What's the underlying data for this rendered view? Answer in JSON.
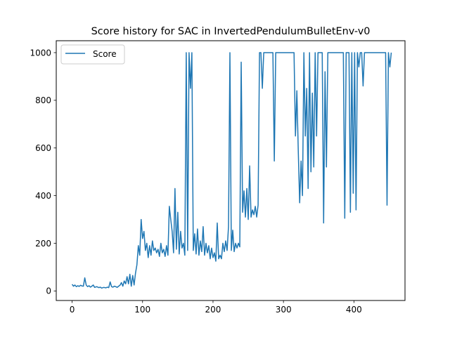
{
  "chart_data": {
    "type": "line",
    "title": "Score history for SAC in InvertedPendulumBulletEnv-v0",
    "xlabel": "",
    "ylabel": "",
    "xlim": [
      -22.5,
      472.5
    ],
    "ylim": [
      -40,
      1050
    ],
    "xticks": [
      0,
      100,
      200,
      300,
      400
    ],
    "yticks": [
      0,
      200,
      400,
      600,
      800,
      1000
    ],
    "grid": false,
    "legend_position": "upper-left",
    "series": [
      {
        "name": "Score",
        "color": "#1f77b4",
        "points": [
          [
            0,
            28
          ],
          [
            2,
            20
          ],
          [
            4,
            25
          ],
          [
            6,
            18
          ],
          [
            8,
            22
          ],
          [
            10,
            19
          ],
          [
            12,
            24
          ],
          [
            14,
            21
          ],
          [
            16,
            20
          ],
          [
            18,
            55
          ],
          [
            20,
            25
          ],
          [
            22,
            18
          ],
          [
            24,
            22
          ],
          [
            26,
            16
          ],
          [
            28,
            20
          ],
          [
            30,
            25
          ],
          [
            32,
            15
          ],
          [
            35,
            18
          ],
          [
            38,
            14
          ],
          [
            40,
            16
          ],
          [
            42,
            12
          ],
          [
            45,
            15
          ],
          [
            48,
            13
          ],
          [
            50,
            16
          ],
          [
            52,
            14
          ],
          [
            54,
            38
          ],
          [
            56,
            18
          ],
          [
            58,
            16
          ],
          [
            60,
            20
          ],
          [
            62,
            18
          ],
          [
            64,
            15
          ],
          [
            66,
            20
          ],
          [
            68,
            24
          ],
          [
            70,
            35
          ],
          [
            72,
            20
          ],
          [
            74,
            42
          ],
          [
            76,
            30
          ],
          [
            78,
            60
          ],
          [
            80,
            30
          ],
          [
            82,
            70
          ],
          [
            84,
            20
          ],
          [
            86,
            65
          ],
          [
            88,
            25
          ],
          [
            90,
            75
          ],
          [
            92,
            110
          ],
          [
            94,
            190
          ],
          [
            96,
            150
          ],
          [
            98,
            300
          ],
          [
            100,
            220
          ],
          [
            102,
            250
          ],
          [
            104,
            170
          ],
          [
            106,
            200
          ],
          [
            108,
            140
          ],
          [
            110,
            190
          ],
          [
            112,
            150
          ],
          [
            114,
            210
          ],
          [
            116,
            170
          ],
          [
            118,
            180
          ],
          [
            120,
            160
          ],
          [
            122,
            175
          ],
          [
            124,
            145
          ],
          [
            126,
            200
          ],
          [
            128,
            160
          ],
          [
            130,
            175
          ],
          [
            132,
            145
          ],
          [
            134,
            190
          ],
          [
            136,
            150
          ],
          [
            138,
            355
          ],
          [
            140,
            300
          ],
          [
            142,
            250
          ],
          [
            144,
            160
          ],
          [
            146,
            430
          ],
          [
            148,
            175
          ],
          [
            150,
            330
          ],
          [
            152,
            155
          ],
          [
            154,
            250
          ],
          [
            156,
            180
          ],
          [
            158,
            200
          ],
          [
            160,
            150
          ],
          [
            162,
            1000
          ],
          [
            164,
            170
          ],
          [
            166,
            1000
          ],
          [
            168,
            850
          ],
          [
            170,
            1000
          ],
          [
            172,
            170
          ],
          [
            174,
            240
          ],
          [
            176,
            155
          ],
          [
            178,
            260
          ],
          [
            180,
            150
          ],
          [
            182,
            210
          ],
          [
            184,
            165
          ],
          [
            186,
            270
          ],
          [
            188,
            150
          ],
          [
            190,
            200
          ],
          [
            192,
            160
          ],
          [
            194,
            190
          ],
          [
            196,
            135
          ],
          [
            198,
            180
          ],
          [
            200,
            140
          ],
          [
            202,
            160
          ],
          [
            204,
            125
          ],
          [
            206,
            285
          ],
          [
            208,
            135
          ],
          [
            210,
            150
          ],
          [
            212,
            135
          ],
          [
            214,
            200
          ],
          [
            216,
            165
          ],
          [
            218,
            210
          ],
          [
            220,
            170
          ],
          [
            222,
            270
          ],
          [
            224,
            1000
          ],
          [
            226,
            170
          ],
          [
            228,
            255
          ],
          [
            230,
            165
          ],
          [
            232,
            200
          ],
          [
            234,
            180
          ],
          [
            236,
            200
          ],
          [
            238,
            185
          ],
          [
            240,
            960
          ],
          [
            242,
            330
          ],
          [
            244,
            420
          ],
          [
            246,
            310
          ],
          [
            248,
            430
          ],
          [
            250,
            300
          ],
          [
            252,
            525
          ],
          [
            254,
            310
          ],
          [
            256,
            340
          ],
          [
            258,
            320
          ],
          [
            260,
            355
          ],
          [
            262,
            310
          ],
          [
            264,
            360
          ],
          [
            266,
            1000
          ],
          [
            268,
            1000
          ],
          [
            270,
            850
          ],
          [
            272,
            1000
          ],
          [
            280,
            1000
          ],
          [
            285,
            1000
          ],
          [
            287,
            545
          ],
          [
            289,
            1000
          ],
          [
            300,
            1000
          ],
          [
            310,
            1000
          ],
          [
            315,
            1000
          ],
          [
            317,
            650
          ],
          [
            319,
            840
          ],
          [
            321,
            590
          ],
          [
            323,
            370
          ],
          [
            325,
            545
          ],
          [
            327,
            400
          ],
          [
            329,
            1000
          ],
          [
            331,
            650
          ],
          [
            333,
            850
          ],
          [
            335,
            430
          ],
          [
            337,
            1000
          ],
          [
            339,
            500
          ],
          [
            341,
            830
          ],
          [
            343,
            520
          ],
          [
            345,
            1000
          ],
          [
            347,
            650
          ],
          [
            349,
            1000
          ],
          [
            351,
            1000
          ],
          [
            353,
            1000
          ],
          [
            355,
            1000
          ],
          [
            357,
            285
          ],
          [
            359,
            920
          ],
          [
            361,
            520
          ],
          [
            363,
            1000
          ],
          [
            365,
            1000
          ],
          [
            375,
            1000
          ],
          [
            385,
            1000
          ],
          [
            387,
            305
          ],
          [
            389,
            1000
          ],
          [
            393,
            1000
          ],
          [
            395,
            330
          ],
          [
            397,
            1000
          ],
          [
            399,
            410
          ],
          [
            401,
            1000
          ],
          [
            403,
            340
          ],
          [
            405,
            1000
          ],
          [
            407,
            940
          ],
          [
            409,
            1000
          ],
          [
            411,
            1000
          ],
          [
            413,
            860
          ],
          [
            415,
            1000
          ],
          [
            420,
            1000
          ],
          [
            430,
            1000
          ],
          [
            440,
            1000
          ],
          [
            445,
            1000
          ],
          [
            447,
            360
          ],
          [
            449,
            1000
          ],
          [
            451,
            940
          ],
          [
            453,
            1000
          ]
        ]
      }
    ]
  }
}
